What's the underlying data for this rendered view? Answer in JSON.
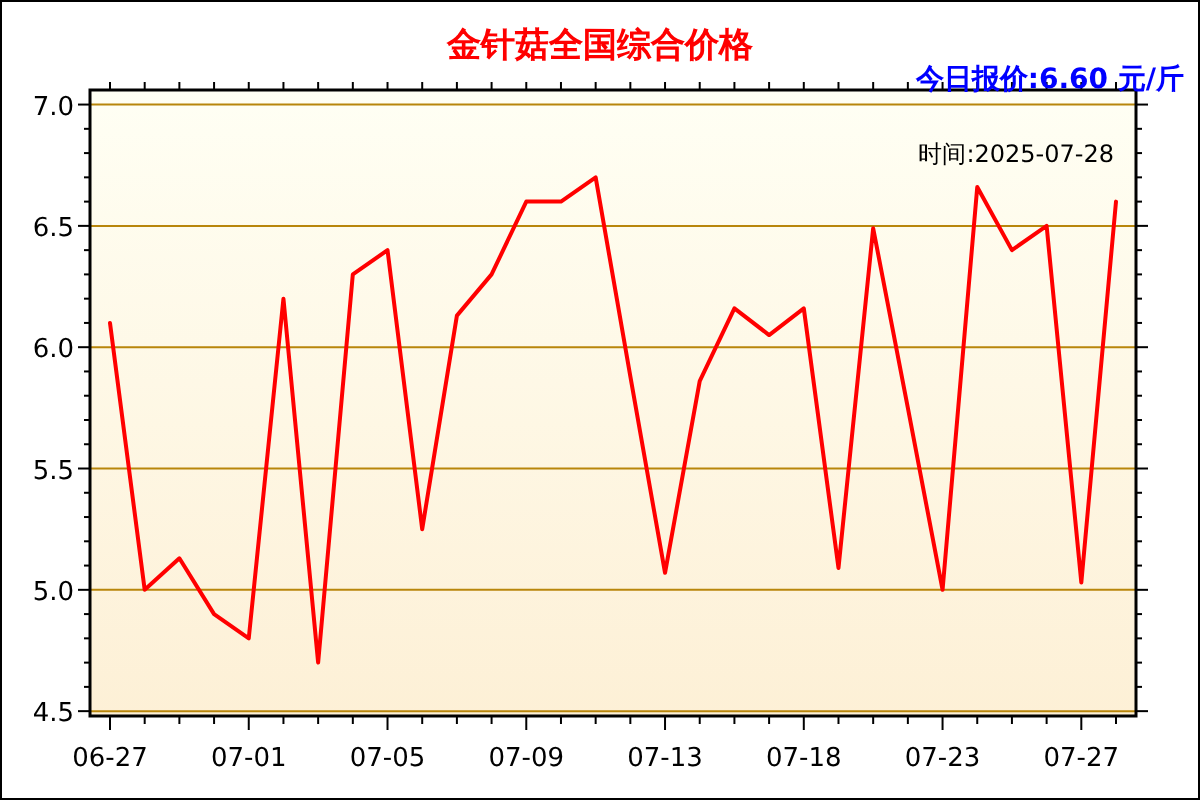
{
  "chart_data": {
    "type": "line",
    "title": "金针菇全国综合价格",
    "annotations": [
      "今日报价:6.60 元/斤",
      "时间:2025-07-28"
    ],
    "categories": [
      "06-27",
      null,
      null,
      null,
      "07-01",
      null,
      null,
      null,
      "07-05",
      null,
      null,
      null,
      "07-09",
      null,
      null,
      null,
      "07-13",
      null,
      null,
      null,
      "07-18",
      null,
      null,
      null,
      "07-23",
      null,
      null,
      null,
      "07-27",
      null
    ],
    "series": [
      {
        "color": "#ff0000",
        "values": [
          6.1,
          5.0,
          5.13,
          4.9,
          4.8,
          6.2,
          4.7,
          6.3,
          6.4,
          5.25,
          6.13,
          6.3,
          6.6,
          6.6,
          6.7,
          5.88,
          5.07,
          5.86,
          6.16,
          6.05,
          6.16,
          5.09,
          6.49,
          5.75,
          5.0,
          6.66,
          6.4,
          6.5,
          5.03,
          6.6
        ]
      }
    ],
    "ylim": [
      4.48,
      7.06
    ],
    "yticks": [
      {
        "value": 4.5,
        "label": "4.5"
      },
      {
        "value": 4.6,
        "label": null
      },
      {
        "value": 4.7,
        "label": null
      },
      {
        "value": 4.8,
        "label": null
      },
      {
        "value": 4.9,
        "label": null
      },
      {
        "value": 5.0,
        "label": "5.0"
      },
      {
        "value": 5.1,
        "label": null
      },
      {
        "value": 5.2,
        "label": null
      },
      {
        "value": 5.3,
        "label": null
      },
      {
        "value": 5.4,
        "label": null
      },
      {
        "value": 5.5,
        "label": "5.5"
      },
      {
        "value": 5.6,
        "label": null
      },
      {
        "value": 5.7,
        "label": null
      },
      {
        "value": 5.8,
        "label": null
      },
      {
        "value": 5.9,
        "label": null
      },
      {
        "value": 6.0,
        "label": "6.0"
      },
      {
        "value": 6.1,
        "label": null
      },
      {
        "value": 6.2,
        "label": null
      },
      {
        "value": 6.3,
        "label": null
      },
      {
        "value": 6.4,
        "label": null
      },
      {
        "value": 6.5,
        "label": "6.5"
      },
      {
        "value": 6.6,
        "label": null
      },
      {
        "value": 6.7,
        "label": null
      },
      {
        "value": 6.8,
        "label": null
      },
      {
        "value": 6.9,
        "label": null
      },
      {
        "value": 7.0,
        "label": "7.0"
      }
    ],
    "grid": "y",
    "line_style": "solid"
  }
}
